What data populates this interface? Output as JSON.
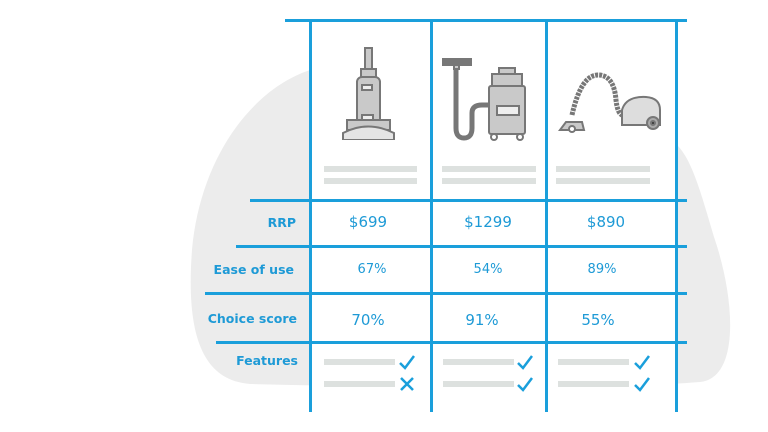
{
  "colors": {
    "accent": "#1a9fdb",
    "text": "#1e9ad6",
    "blob": "#ececec",
    "placeholder": "#dde1df",
    "icon": "#8a8a8a"
  },
  "products": [
    {
      "icon": "upright-vacuum-icon",
      "rrp": "$699",
      "ease_of_use": "67%",
      "choice_score": "70%",
      "features": [
        "check",
        "cross"
      ]
    },
    {
      "icon": "wet-dry-vacuum-icon",
      "rrp": "$1299",
      "ease_of_use": "54%",
      "choice_score": "91%",
      "features": [
        "check",
        "check"
      ]
    },
    {
      "icon": "canister-vacuum-icon",
      "rrp": "$890",
      "ease_of_use": "89%",
      "choice_score": "55%",
      "features": [
        "check",
        "check"
      ]
    }
  ],
  "rows": {
    "rrp": "RRP",
    "ease_of_use": "Ease of use",
    "choice_score": "Choice score",
    "features": "Features"
  }
}
